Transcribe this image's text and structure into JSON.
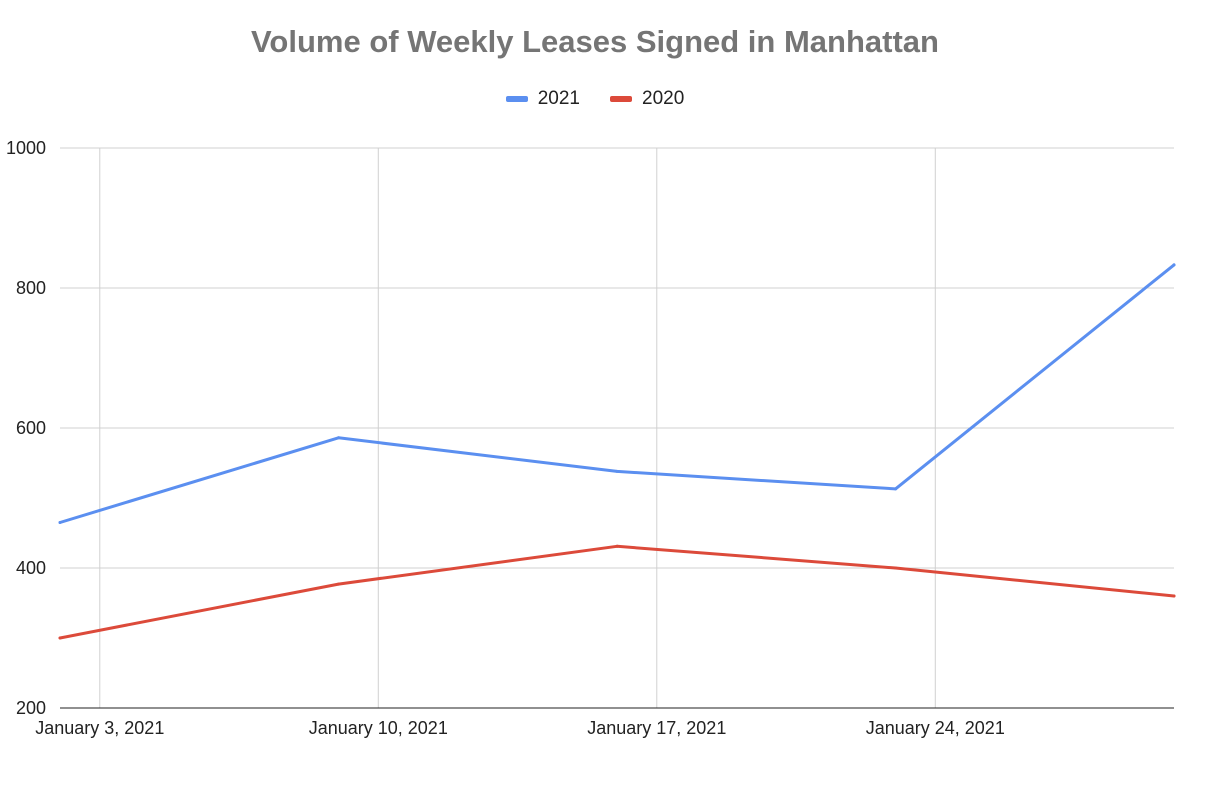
{
  "chart_data": {
    "type": "line",
    "title": "Volume of Weekly Leases Signed in Manhattan",
    "xlabel": "",
    "ylabel": "",
    "x_ticks": [
      "January 3, 2021",
      "January 10, 2021",
      "January 17, 2021",
      "January 24, 2021"
    ],
    "x": [
      "2021-01-02",
      "2021-01-09",
      "2021-01-16",
      "2021-01-23",
      "2021-01-30"
    ],
    "ylim": [
      200,
      1000
    ],
    "y_ticks": [
      200,
      400,
      600,
      800,
      1000
    ],
    "grid": true,
    "legend_position": "top",
    "series": [
      {
        "name": "2021",
        "color": "#5b8ff0",
        "values": [
          465,
          586,
          538,
          513,
          833
        ]
      },
      {
        "name": "2020",
        "color": "#dc4a3a",
        "values": [
          300,
          377,
          431,
          400,
          360
        ]
      }
    ]
  }
}
